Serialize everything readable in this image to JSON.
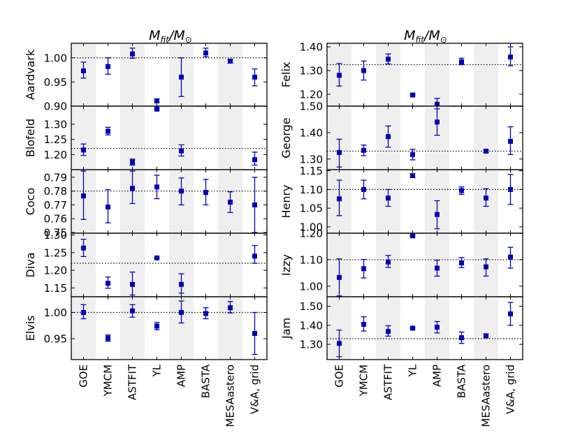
{
  "figure": {
    "left_title": "M_fit/M_⊙",
    "right_title": "M_fit/M_⊙",
    "title_main": "M",
    "title_sub": "fit",
    "title_slash": "/M",
    "title_sun": "⊙"
  },
  "colors": {
    "marker": "#0000bb",
    "band": "#efefef",
    "reference": "#000000"
  },
  "chart_data": [
    {
      "type": "scatter",
      "column": "left",
      "star": "Aardvark",
      "categories": [
        "GOE",
        "YMCM",
        "ASTFIT",
        "YL",
        "AMP",
        "BASTA",
        "MESAastero",
        "V&A, grid"
      ],
      "ylim": [
        0.9,
        1.03
      ],
      "yticks": [
        0.9,
        0.95,
        1.0
      ],
      "ytick_labels": [
        "0.90",
        "0.95",
        "1.00"
      ],
      "reference": 1.0,
      "values": [
        0.973,
        0.982,
        1.008,
        0.911,
        0.96,
        1.01,
        0.993,
        0.96
      ],
      "err_low": [
        0.015,
        0.016,
        0.009,
        0.004,
        0.04,
        0.008,
        0.004,
        0.018
      ],
      "err_high": [
        0.018,
        0.018,
        0.012,
        0.004,
        0.04,
        0.01,
        0.004,
        0.017
      ]
    },
    {
      "type": "scatter",
      "column": "left",
      "star": "Blofeld",
      "categories": [
        "GOE",
        "YMCM",
        "ASTFIT",
        "YL",
        "AMP",
        "BASTA",
        "MESAastero",
        "V&A, grid"
      ],
      "ylim": [
        1.15,
        1.36
      ],
      "yticks": [
        1.2,
        1.25,
        1.3
      ],
      "ytick_labels": [
        "1.20",
        "1.25",
        "1.30"
      ],
      "reference": 1.22,
      "values": [
        1.215,
        1.277,
        1.175,
        1.35,
        1.212,
        null,
        null,
        1.183
      ],
      "err_low": [
        0.018,
        0.012,
        0.01,
        0.003,
        0.017,
        0,
        0,
        0.018
      ],
      "err_high": [
        0.02,
        0.013,
        0.01,
        0.003,
        0.02,
        0,
        0,
        0.025
      ]
    },
    {
      "type": "scatter",
      "column": "left",
      "star": "Coco",
      "categories": [
        "GOE",
        "YMCM",
        "ASTFIT",
        "YL",
        "AMP",
        "BASTA",
        "MESAastero",
        "V&A, grid"
      ],
      "ylim": [
        0.7495,
        0.7955
      ],
      "yticks": [
        0.75,
        0.76,
        0.77,
        0.78,
        0.79
      ],
      "ytick_labels": [
        "0.75",
        "0.76",
        "0.77",
        "0.78",
        "0.79"
      ],
      "reference": 0.78,
      "values": [
        0.7765,
        0.7685,
        0.782,
        0.783,
        0.78,
        0.779,
        0.772,
        0.77
      ],
      "err_low": [
        0.017,
        0.0115,
        0.011,
        0.0085,
        0.01,
        0.009,
        0.0075,
        0.02
      ],
      "err_high": [
        0.018,
        0.0125,
        0.0125,
        0.0085,
        0.0095,
        0.0095,
        0.0075,
        0.02
      ]
    },
    {
      "type": "scatter",
      "column": "left",
      "star": "Diva",
      "categories": [
        "GOE",
        "YMCM",
        "ASTFIT",
        "YL",
        "AMP",
        "BASTA",
        "MESAastero",
        "V&A, grid"
      ],
      "ylim": [
        1.125,
        1.305
      ],
      "yticks": [
        1.15,
        1.2,
        1.25,
        1.3
      ],
      "ytick_labels": [
        "1.15",
        "1.20",
        "1.25",
        "1.30"
      ],
      "reference": 1.22,
      "values": [
        1.263,
        1.163,
        1.16,
        1.235,
        1.16,
        null,
        null,
        1.24
      ],
      "err_low": [
        0.024,
        0.014,
        0.03,
        0.002,
        0.025,
        0,
        0,
        0.02
      ],
      "err_high": [
        0.025,
        0.018,
        0.035,
        0.002,
        0.03,
        0,
        0,
        0.03
      ]
    },
    {
      "type": "scatter",
      "column": "left",
      "star": "Elvis",
      "categories": [
        "GOE",
        "YMCM",
        "ASTFIT",
        "YL",
        "AMP",
        "BASTA",
        "MESAastero",
        "V&A, grid"
      ],
      "ylim": [
        0.91,
        1.03
      ],
      "yticks": [
        0.95,
        1.0
      ],
      "ytick_labels": [
        "0.95",
        "1.00"
      ],
      "reference": 1.0,
      "values": [
        1.0,
        0.951,
        1.003,
        0.974,
        1.0,
        0.998,
        1.009,
        0.96
      ],
      "err_low": [
        0.012,
        0.006,
        0.012,
        0.007,
        0.02,
        0.01,
        0.01,
        0.04
      ],
      "err_high": [
        0.015,
        0.006,
        0.012,
        0.007,
        0.022,
        0.011,
        0.012,
        0.04
      ]
    },
    {
      "type": "scatter",
      "column": "right",
      "star": "Felix",
      "categories": [
        "GOE",
        "YMCM",
        "ASTFIT",
        "YL",
        "AMP",
        "BASTA",
        "MESAastero",
        "V&A, grid"
      ],
      "ylim": [
        1.15,
        1.415
      ],
      "yticks": [
        1.2,
        1.3,
        1.4
      ],
      "ytick_labels": [
        "1.20",
        "1.30",
        "1.40"
      ],
      "reference": 1.325,
      "values": [
        1.28,
        1.3,
        1.348,
        1.197,
        1.158,
        1.337,
        null,
        1.357
      ],
      "err_low": [
        0.045,
        0.04,
        0.02,
        0.004,
        0.025,
        0.012,
        0,
        0.037
      ],
      "err_high": [
        0.05,
        0.04,
        0.022,
        0.004,
        0.025,
        0.015,
        0,
        0.043
      ]
    },
    {
      "type": "scatter",
      "column": "right",
      "star": "George",
      "categories": [
        "GOE",
        "YMCM",
        "ASTFIT",
        "YL",
        "AMP",
        "BASTA",
        "MESAastero",
        "V&A, grid"
      ],
      "ylim": [
        1.26,
        1.5
      ],
      "yticks": [
        1.3,
        1.4,
        1.5
      ],
      "ytick_labels": [
        "1.30",
        "1.40",
        "1.50"
      ],
      "reference": 1.33,
      "values": [
        1.325,
        1.333,
        1.385,
        1.317,
        1.44,
        null,
        1.33,
        1.367
      ],
      "err_low": [
        0.055,
        0.02,
        0.04,
        0.02,
        0.05,
        0,
        0.005,
        0.05
      ],
      "err_high": [
        0.05,
        0.02,
        0.04,
        0.02,
        0.05,
        0,
        0.005,
        0.055
      ]
    },
    {
      "type": "scatter",
      "column": "right",
      "star": "Henry",
      "categories": [
        "GOE",
        "YMCM",
        "ASTFIT",
        "YL",
        "AMP",
        "BASTA",
        "MESAastero",
        "V&A, grid"
      ],
      "ylim": [
        0.983,
        1.153
      ],
      "yticks": [
        1.0,
        1.05,
        1.1,
        1.15
      ],
      "ytick_labels": [
        "1.00",
        "1.05",
        "1.10",
        "1.15"
      ],
      "reference": 1.1,
      "values": [
        1.075,
        1.1,
        1.077,
        1.137,
        1.033,
        1.097,
        1.077,
        1.1
      ],
      "err_low": [
        0.045,
        0.025,
        0.022,
        0.005,
        0.038,
        0.01,
        0.022,
        0.04
      ],
      "err_high": [
        0.05,
        0.025,
        0.023,
        0.005,
        0.037,
        0.01,
        0.025,
        0.04
      ]
    },
    {
      "type": "scatter",
      "column": "right",
      "star": "Izzy",
      "categories": [
        "GOE",
        "YMCM",
        "ASTFIT",
        "YL",
        "AMP",
        "BASTA",
        "MESAastero",
        "V&A, grid"
      ],
      "ylim": [
        0.96,
        1.2
      ],
      "yticks": [
        1.0,
        1.1,
        1.2
      ],
      "ytick_labels": [
        "1.00",
        "1.10",
        "1.20"
      ],
      "reference": 1.1,
      "values": [
        1.033,
        1.066,
        1.091,
        1.19,
        1.068,
        1.088,
        1.073,
        1.11
      ],
      "err_low": [
        0.07,
        0.035,
        0.02,
        0.003,
        0.03,
        0.018,
        0.035,
        0.042
      ],
      "err_high": [
        0.07,
        0.035,
        0.025,
        0.003,
        0.03,
        0.02,
        0.03,
        0.037
      ]
    },
    {
      "type": "scatter",
      "column": "right",
      "star": "Jam",
      "categories": [
        "GOE",
        "YMCM",
        "ASTFIT",
        "YL",
        "AMP",
        "BASTA",
        "MESAastero",
        "V&A, grid"
      ],
      "ylim": [
        1.22,
        1.55
      ],
      "yticks": [
        1.3,
        1.4,
        1.5
      ],
      "ytick_labels": [
        "1.30",
        "1.40",
        "1.50"
      ],
      "reference": 1.33,
      "values": [
        1.305,
        1.405,
        1.368,
        1.385,
        1.39,
        1.335,
        1.345,
        1.46
      ],
      "err_low": [
        0.07,
        0.035,
        0.025,
        0.005,
        0.03,
        0.03,
        0.01,
        0.06
      ],
      "err_high": [
        0.07,
        0.04,
        0.03,
        0.005,
        0.03,
        0.03,
        0.01,
        0.06
      ]
    }
  ]
}
